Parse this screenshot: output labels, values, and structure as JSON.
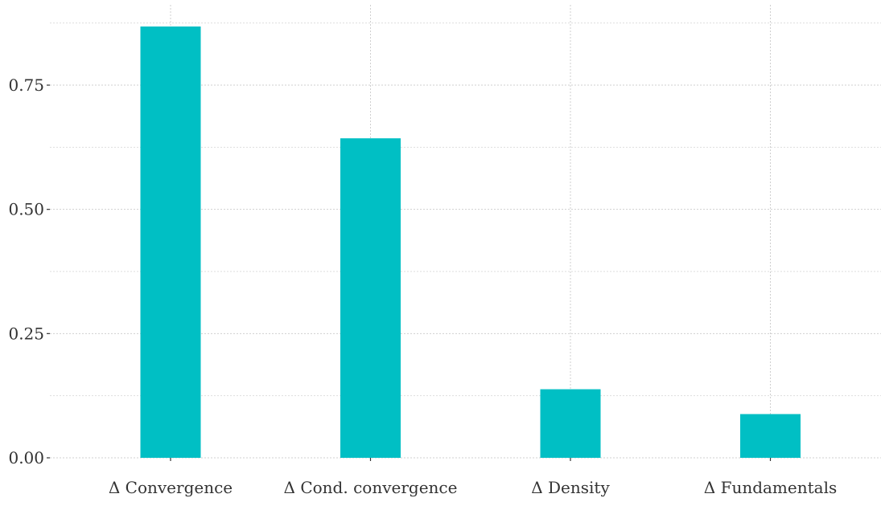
{
  "chart_data": {
    "type": "bar",
    "title": "",
    "xlabel": "",
    "ylabel": "",
    "categories": [
      "Δ Convergence",
      "Δ Cond. convergence",
      "Δ Density",
      "Δ Fundamentals"
    ],
    "values": [
      0.868,
      0.643,
      0.138,
      0.088
    ],
    "ylim": [
      0,
      0.9
    ],
    "yticks": [
      0.0,
      0.25,
      0.5,
      0.75
    ],
    "ytick_labels": [
      "0.00",
      "0.25",
      "0.50",
      "0.75"
    ],
    "grid": true,
    "legend": "none",
    "bar_color": "#00BFC4"
  }
}
